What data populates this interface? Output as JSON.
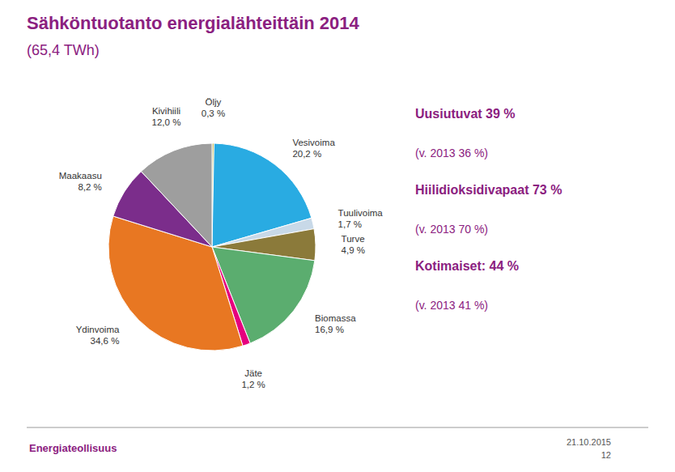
{
  "chart_data": {
    "type": "pie",
    "title": "Sähköntuotanto energialähteittäin 2014",
    "subtitle": "(65,4 TWh)",
    "categories": [
      "Öljy",
      "Vesivoima",
      "Tuulivoima",
      "Turve",
      "Biomassa",
      "Jäte",
      "Ydinvoima",
      "Maakaasu",
      "Kivihiili"
    ],
    "values": [
      0.3,
      20.2,
      1.7,
      4.9,
      16.9,
      1.2,
      34.6,
      8.2,
      12.0
    ],
    "value_labels": [
      "0,3 %",
      "20,2 %",
      "1,7 %",
      "4,9 %",
      "16,9 %",
      "1,2 %",
      "34,6 %",
      "8,2 %",
      "12,0 %"
    ],
    "colors": [
      "#B8A830",
      "#29ABE2",
      "#C8D9E8",
      "#8B7A3A",
      "#5BAD6F",
      "#E6007E",
      "#E87722",
      "#7B2D8B",
      "#9E9E9E"
    ],
    "annotations": [
      "Uusiutuvat 39 %",
      "(v. 2013 36 %)",
      "Hiilidioksidivapaat 73 %",
      "(v. 2013 70 %)",
      "Kotimaiset: 44 %",
      "(v. 2013 41 %)",
      "Energiateollisuus",
      "21.10.2015",
      "12"
    ]
  }
}
